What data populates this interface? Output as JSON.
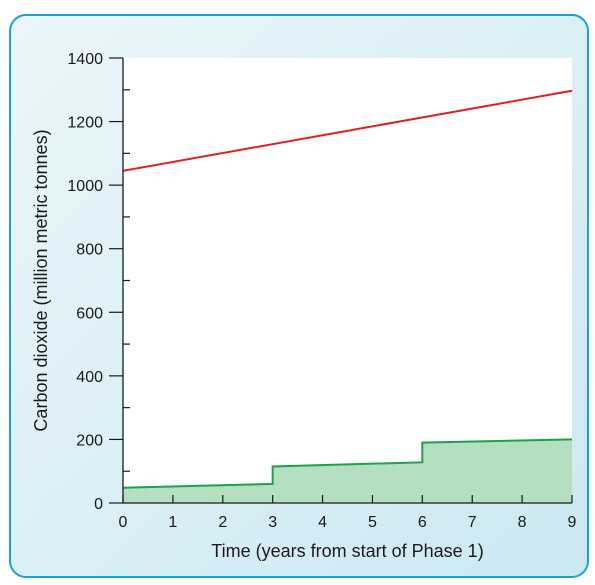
{
  "colors": {
    "panel_border": "#1aa0d8",
    "panel_bg_top": "#eaf6fa",
    "panel_bg_bottom": "#cce8f1",
    "plot_bg": "#ffffff",
    "upper_line": "#e0201f",
    "lower_line": "#1aa34a",
    "lower_fill": "#b4dfc1"
  },
  "chart_data": {
    "type": "line",
    "xlabel": "Time (years from start of Phase 1)",
    "ylabel": "Carbon dioxide (million metric tonnes)",
    "xlim": [
      0,
      9
    ],
    "ylim": [
      0,
      1400
    ],
    "x_ticks": [
      0,
      1,
      2,
      3,
      4,
      5,
      6,
      7,
      8,
      9
    ],
    "y_ticks": [
      0,
      200,
      400,
      600,
      800,
      1000,
      1200,
      1400
    ],
    "y_minor_step": 100,
    "grid": false,
    "legend": "none",
    "series": [
      {
        "values": [
          {
            "x": 0,
            "y": 1045
          },
          {
            "x": 9,
            "y": 1297
          }
        ],
        "color": "#e0201f",
        "style": "line"
      },
      {
        "values": [
          {
            "x": 0,
            "y": 48
          },
          {
            "x": 3,
            "y": 60
          },
          {
            "x": 3,
            "y": 115
          },
          {
            "x": 6,
            "y": 128
          },
          {
            "x": 6,
            "y": 190
          },
          {
            "x": 9,
            "y": 200
          }
        ],
        "color": "#1aa34a",
        "style": "step-area"
      }
    ]
  }
}
